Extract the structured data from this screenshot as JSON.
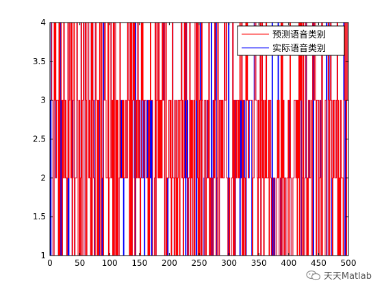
{
  "chart_data": {
    "type": "line",
    "title": "",
    "xlabel": "",
    "ylabel": "",
    "xlim": [
      0,
      500
    ],
    "ylim": [
      1,
      4
    ],
    "x_ticks": [
      "0",
      "50",
      "100",
      "150",
      "200",
      "250",
      "300",
      "350",
      "400",
      "450",
      "500"
    ],
    "y_ticks": [
      "1",
      "1.5",
      "2",
      "2.5",
      "3",
      "3.5",
      "4"
    ],
    "legend_position": "top-right",
    "grid": false,
    "series": [
      {
        "name": "预测语音类别",
        "color": "#ff0000",
        "style": "stairs"
      },
      {
        "name": "实际语音类别",
        "color": "#0000ff",
        "style": "stairs"
      }
    ],
    "seed": 20240601
  },
  "watermark": {
    "text": "天天Matlab"
  },
  "colors": {
    "axes": "#000000",
    "background": "#ffffff"
  }
}
